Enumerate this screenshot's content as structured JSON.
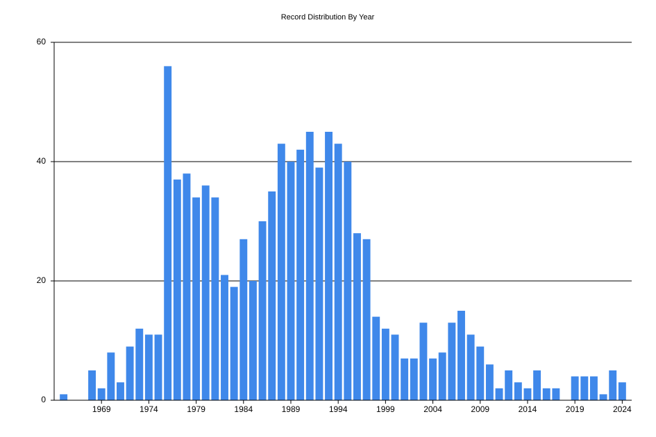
{
  "chart_data": {
    "type": "bar",
    "title": "Record Distribution By Year",
    "x": [
      1965,
      1968,
      1969,
      1970,
      1971,
      1972,
      1973,
      1974,
      1975,
      1976,
      1977,
      1978,
      1979,
      1980,
      1981,
      1982,
      1983,
      1984,
      1985,
      1986,
      1987,
      1988,
      1989,
      1990,
      1991,
      1992,
      1993,
      1994,
      1995,
      1996,
      1997,
      1998,
      1999,
      2000,
      2001,
      2002,
      2003,
      2004,
      2005,
      2006,
      2007,
      2008,
      2009,
      2010,
      2011,
      2012,
      2013,
      2014,
      2015,
      2016,
      2017,
      2019,
      2020,
      2021,
      2022,
      2023,
      2024
    ],
    "values": [
      1,
      5,
      2,
      8,
      3,
      9,
      12,
      11,
      11,
      56,
      37,
      38,
      34,
      36,
      34,
      21,
      19,
      27,
      20,
      30,
      35,
      43,
      40,
      42,
      45,
      39,
      45,
      43,
      40,
      28,
      27,
      14,
      12,
      11,
      7,
      7,
      13,
      7,
      8,
      13,
      15,
      11,
      9,
      6,
      2,
      5,
      3,
      2,
      5,
      2,
      2,
      4,
      4,
      4,
      1,
      5,
      3
    ],
    "color": "#3f88ea",
    "xlim": [
      1964,
      2025
    ],
    "xticks": [
      1969,
      1974,
      1979,
      1984,
      1989,
      1994,
      1999,
      2004,
      2009,
      2014,
      2019,
      2024
    ],
    "ylim": [
      0,
      60
    ],
    "yticks": [
      0,
      20,
      40,
      60
    ],
    "grid": true
  }
}
